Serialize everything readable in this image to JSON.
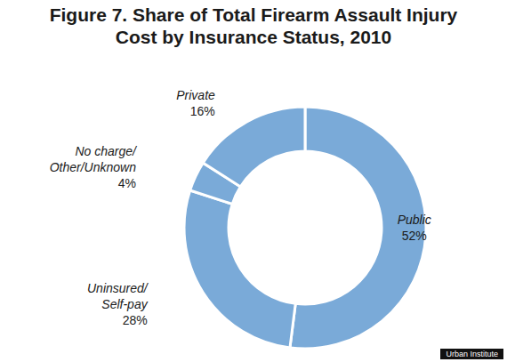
{
  "chart_data": {
    "type": "pie",
    "title": "Figure 7. Share of Total Firearm Assault Injury Cost by Insurance Status, 2010",
    "categories": [
      "Public",
      "Uninsured/Self-pay",
      "No charge/Other/Unknown",
      "Private"
    ],
    "values": [
      52,
      28,
      4,
      16
    ],
    "value_labels": [
      "52%",
      "28%",
      "4%",
      "16%"
    ],
    "data_labels": true,
    "color": "#7aaad8",
    "source": "Urban Institute"
  }
}
